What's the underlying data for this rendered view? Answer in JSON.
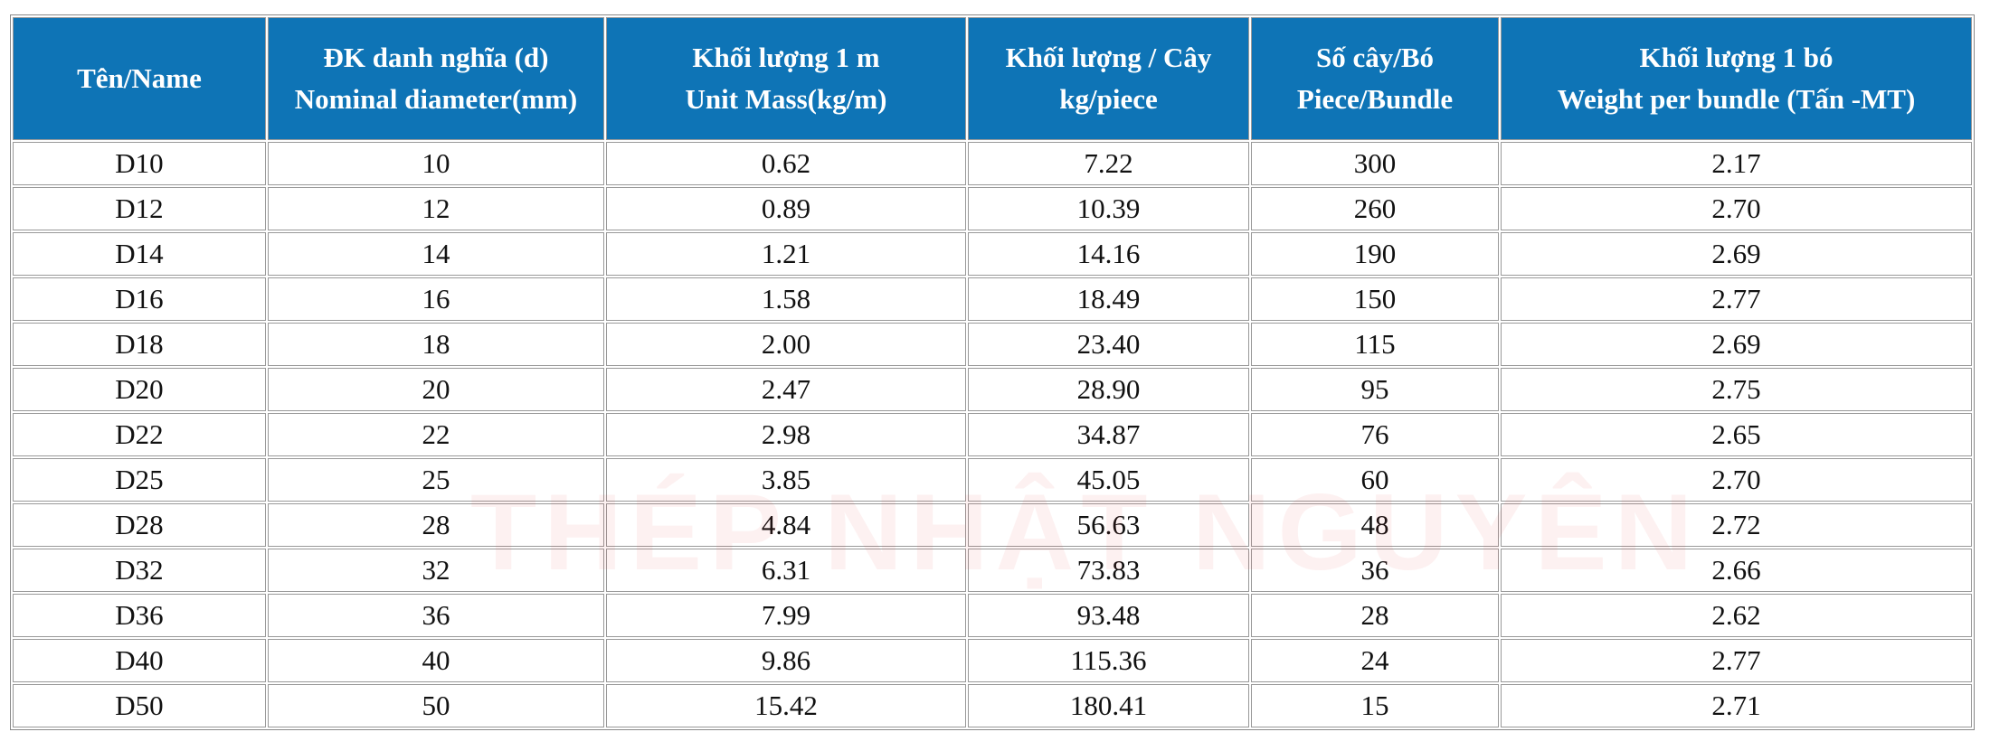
{
  "watermark": "THÉP NHẬT NGUYÊN",
  "table": {
    "header": [
      [
        "Tên/Name"
      ],
      [
        "ĐK danh nghĩa (d)",
        "Nominal diameter(mm)"
      ],
      [
        "Khối lượng 1 m",
        "Unit Mass(kg/m)"
      ],
      [
        "Khối lượng / Cây",
        "kg/piece"
      ],
      [
        "Số cây/Bó",
        "Piece/Bundle"
      ],
      [
        "Khối lượng 1 bó",
        "Weight per bundle (Tấn -MT)"
      ]
    ],
    "rows": [
      [
        "D10",
        "10",
        "0.62",
        "7.22",
        "300",
        "2.17"
      ],
      [
        "D12",
        "12",
        "0.89",
        "10.39",
        "260",
        "2.70"
      ],
      [
        "D14",
        "14",
        "1.21",
        "14.16",
        "190",
        "2.69"
      ],
      [
        "D16",
        "16",
        "1.58",
        "18.49",
        "150",
        "2.77"
      ],
      [
        "D18",
        "18",
        "2.00",
        "23.40",
        "115",
        "2.69"
      ],
      [
        "D20",
        "20",
        "2.47",
        "28.90",
        "95",
        "2.75"
      ],
      [
        "D22",
        "22",
        "2.98",
        "34.87",
        "76",
        "2.65"
      ],
      [
        "D25",
        "25",
        "3.85",
        "45.05",
        "60",
        "2.70"
      ],
      [
        "D28",
        "28",
        "4.84",
        "56.63",
        "48",
        "2.72"
      ],
      [
        "D32",
        "32",
        "6.31",
        "73.83",
        "36",
        "2.66"
      ],
      [
        "D36",
        "36",
        "7.99",
        "93.48",
        "28",
        "2.62"
      ],
      [
        "D40",
        "40",
        "9.86",
        "115.36",
        "24",
        "2.77"
      ],
      [
        "D50",
        "50",
        "15.42",
        "180.41",
        "15",
        "2.71"
      ]
    ]
  }
}
